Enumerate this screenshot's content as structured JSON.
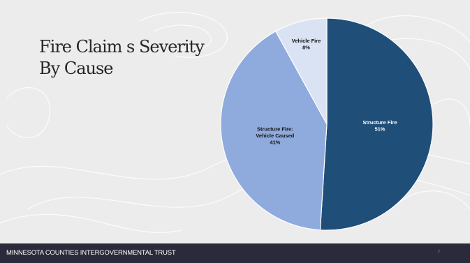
{
  "slide": {
    "title_line1": "Fire Claim s Severity",
    "title_line2": "By Cause",
    "footer_text": "MINNESOTA COUNTIES INTERGOVERNMENTAL TRUST",
    "page_number": "7"
  },
  "colors": {
    "background": "#ececec",
    "footer": "#2a2a3a",
    "structure_fire": "#1f4e79",
    "structure_fire_vehicle_caused": "#8faadc",
    "vehicle_fire": "#dae3f3"
  },
  "chart_data": {
    "type": "pie",
    "title": "",
    "start": "top",
    "direction": "clockwise",
    "legend": "none",
    "slices": [
      {
        "label_lines": [
          "Structure Fire"
        ],
        "value": 51,
        "value_label": "51%",
        "color": "#1f4e79",
        "text_color": "#ffffff"
      },
      {
        "label_lines": [
          "Structure Fire:",
          "Vehicle Caused"
        ],
        "value": 41,
        "value_label": "41%",
        "color": "#8faadc",
        "text_color": "#111111"
      },
      {
        "label_lines": [
          "Vehicle Fire"
        ],
        "value": 8,
        "value_label": "8%",
        "color": "#dae3f3",
        "text_color": "#111111"
      }
    ]
  }
}
